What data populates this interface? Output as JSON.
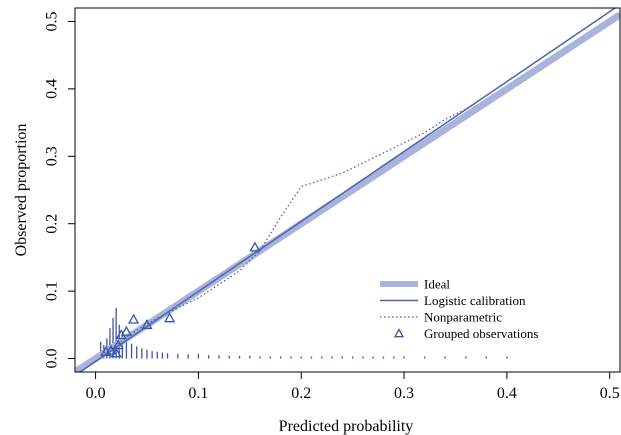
{
  "chart_data": {
    "type": "line",
    "xlabel": "Predicted probability",
    "ylabel": "Observed proportion",
    "xlim": [
      -0.02,
      0.51
    ],
    "ylim": [
      -0.02,
      0.52
    ],
    "x_ticks": [
      0.0,
      0.1,
      0.2,
      0.3,
      0.4,
      0.5
    ],
    "x_tick_labels": [
      "0.0",
      "0.1",
      "0.2",
      "0.3",
      "0.4",
      "0.5"
    ],
    "y_ticks": [
      0.0,
      0.1,
      0.2,
      0.3,
      0.4,
      0.5
    ],
    "y_tick_labels": [
      "0.0",
      "0.1",
      "0.2",
      "0.3",
      "0.4",
      "0.5"
    ],
    "grid": false,
    "legend_position": "bottom-right",
    "colors": {
      "ideal": "#a9b3dd",
      "line": "#4c66ad",
      "marks": "#3b55a8"
    },
    "legend": [
      {
        "key": "ideal",
        "label": "Ideal"
      },
      {
        "key": "logistic",
        "label": "Logistic calibration"
      },
      {
        "key": "nonparametric",
        "label": "Nonparametric"
      },
      {
        "key": "grouped",
        "label": "Grouped observations"
      }
    ],
    "series": [
      {
        "key": "ideal",
        "style": "thick",
        "x": [
          -0.02,
          0.51
        ],
        "y": [
          -0.02,
          0.51
        ]
      },
      {
        "key": "logistic",
        "style": "solid",
        "x": [
          -0.02,
          0.51
        ],
        "y": [
          -0.025,
          0.525
        ]
      },
      {
        "key": "nonparametric",
        "style": "dotted",
        "x": [
          0.005,
          0.02,
          0.04,
          0.06,
          0.08,
          0.1,
          0.12,
          0.14,
          0.16,
          0.18,
          0.2,
          0.22,
          0.24,
          0.26,
          0.28,
          0.3,
          0.32,
          0.34,
          0.36,
          0.38,
          0.4
        ],
        "y": [
          0.005,
          0.02,
          0.042,
          0.06,
          0.075,
          0.09,
          0.11,
          0.13,
          0.16,
          0.21,
          0.255,
          0.265,
          0.275,
          0.29,
          0.305,
          0.32,
          0.335,
          0.355,
          0.37,
          0.39,
          0.41
        ]
      },
      {
        "key": "grouped",
        "style": "triangles",
        "x": [
          0.01,
          0.015,
          0.02,
          0.022,
          0.025,
          0.03,
          0.037,
          0.05,
          0.072,
          0.155
        ],
        "y": [
          0.01,
          0.012,
          0.008,
          0.02,
          0.035,
          0.04,
          0.058,
          0.05,
          0.06,
          0.165
        ]
      }
    ],
    "spike_histogram": {
      "x": [
        0.005,
        0.008,
        0.011,
        0.014,
        0.017,
        0.02,
        0.023,
        0.026,
        0.03,
        0.035,
        0.04,
        0.045,
        0.05,
        0.055,
        0.06,
        0.065,
        0.07,
        0.08,
        0.09,
        0.1,
        0.11,
        0.12,
        0.13,
        0.14,
        0.15,
        0.16,
        0.17,
        0.18,
        0.19,
        0.2,
        0.21,
        0.22,
        0.23,
        0.24,
        0.25,
        0.26,
        0.27,
        0.28,
        0.29,
        0.3,
        0.32,
        0.34,
        0.36,
        0.38,
        0.4
      ],
      "heights": [
        0.025,
        0.02,
        0.03,
        0.045,
        0.06,
        0.075,
        0.05,
        0.035,
        0.028,
        0.022,
        0.018,
        0.015,
        0.013,
        0.011,
        0.01,
        0.009,
        0.008,
        0.007,
        0.006,
        0.007,
        0.005,
        0.005,
        0.004,
        0.004,
        0.004,
        0.003,
        0.003,
        0.003,
        0.003,
        0.003,
        0.003,
        0.003,
        0.003,
        0.003,
        0.003,
        0.003,
        0.003,
        0.003,
        0.003,
        0.003,
        0.003,
        0.003,
        0.003,
        0.003,
        0.003
      ]
    }
  }
}
